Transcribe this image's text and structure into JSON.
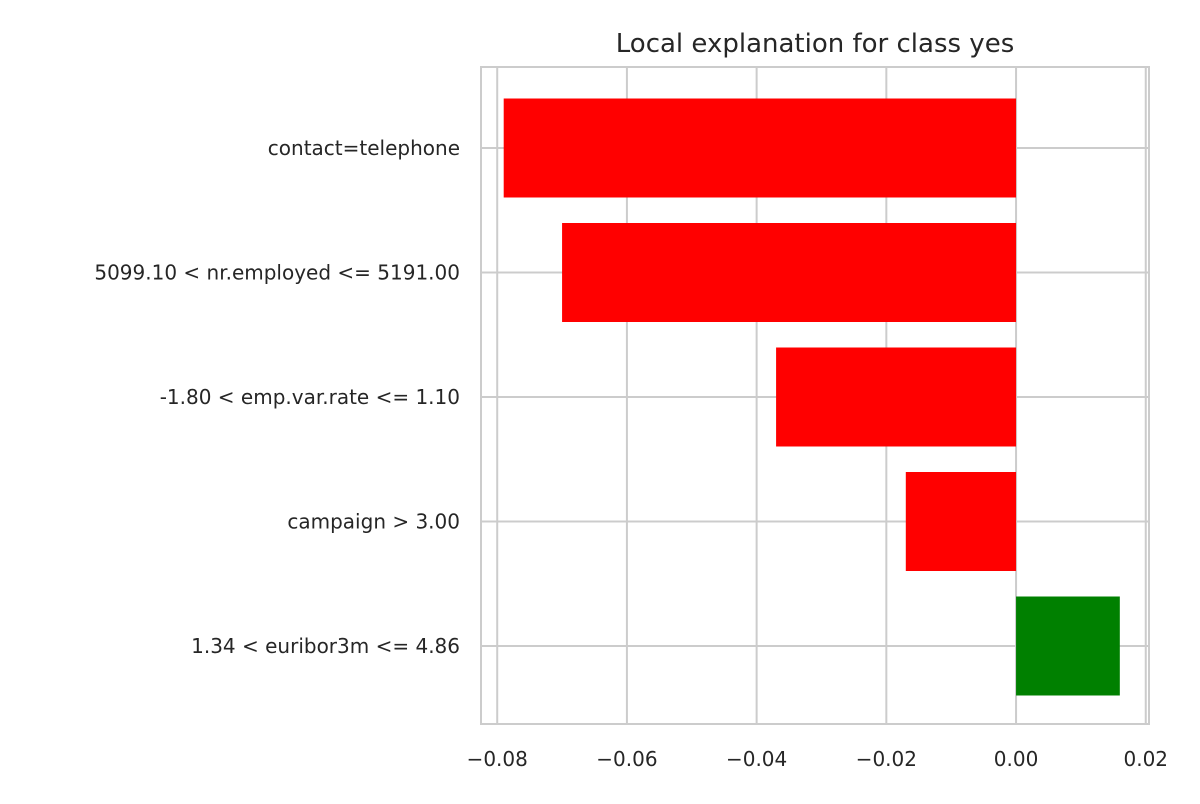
{
  "chart_data": {
    "type": "bar",
    "orientation": "horizontal",
    "title": "Local explanation for class yes",
    "xlabel": "",
    "ylabel": "",
    "categories": [
      "contact=telephone",
      "5099.10 < nr.employed <= 5191.00",
      "-1.80 < emp.var.rate <= 1.10",
      "campaign > 3.00",
      "1.34 < euribor3m <= 4.86"
    ],
    "values": [
      -0.079,
      -0.07,
      -0.037,
      -0.017,
      0.016
    ],
    "colors": [
      "#ff0000",
      "#ff0000",
      "#ff0000",
      "#ff0000",
      "#008000"
    ],
    "xlim": [
      -0.0825,
      0.0205
    ],
    "xticks": [
      -0.08,
      -0.06,
      -0.04,
      -0.02,
      0.0,
      0.02
    ],
    "xtick_labels": [
      "−0.08",
      "−0.06",
      "−0.04",
      "−0.02",
      "0.00",
      "0.02"
    ],
    "grid": true,
    "style": {
      "grid_color": "#cccccc",
      "spine_color": "#cccccc",
      "text_color": "#262626",
      "background": "#ffffff"
    }
  }
}
